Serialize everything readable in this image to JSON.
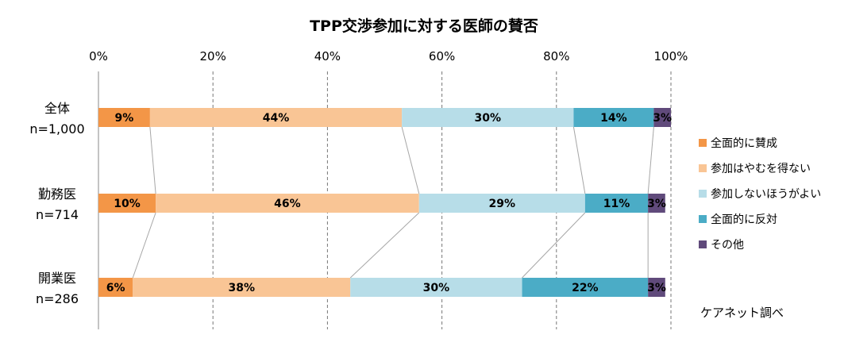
{
  "chart_data": {
    "type": "bar",
    "orientation": "horizontal",
    "stacked": "percent",
    "title": "TPP交渉参加に対する医師の賛否",
    "x_ticks": [
      "0%",
      "20%",
      "40%",
      "60%",
      "80%",
      "100%"
    ],
    "xlim": [
      0,
      100
    ],
    "categories": [
      {
        "name": "全体",
        "n": "n=1,000"
      },
      {
        "name": "勤務医",
        "n": "n=714"
      },
      {
        "name": "開業医",
        "n": "n=286"
      }
    ],
    "series": [
      {
        "name": "全面的に賛成",
        "color": "#f39647",
        "values": [
          9,
          10,
          6
        ],
        "labels": [
          "9%",
          "10%",
          "6%"
        ]
      },
      {
        "name": "参加はやむを得ない",
        "color": "#f9c595",
        "values": [
          44,
          46,
          38
        ],
        "labels": [
          "44%",
          "46%",
          "38%"
        ]
      },
      {
        "name": "参加しないほうがよい",
        "color": "#b7dde8",
        "values": [
          30,
          29,
          30
        ],
        "labels": [
          "30%",
          "29%",
          "30%"
        ]
      },
      {
        "name": "全面的に反対",
        "color": "#4bacc6",
        "values": [
          14,
          11,
          22
        ],
        "labels": [
          "14%",
          "11%",
          "22%"
        ]
      },
      {
        "name": "その他",
        "color": "#604a7b",
        "values": [
          3,
          3,
          3
        ],
        "labels": [
          "3%",
          "3%",
          "3%"
        ]
      }
    ],
    "gridlines": "dashed vertical",
    "series_lines": true,
    "legend_position": "right",
    "source_note": "ケアネット調べ"
  }
}
